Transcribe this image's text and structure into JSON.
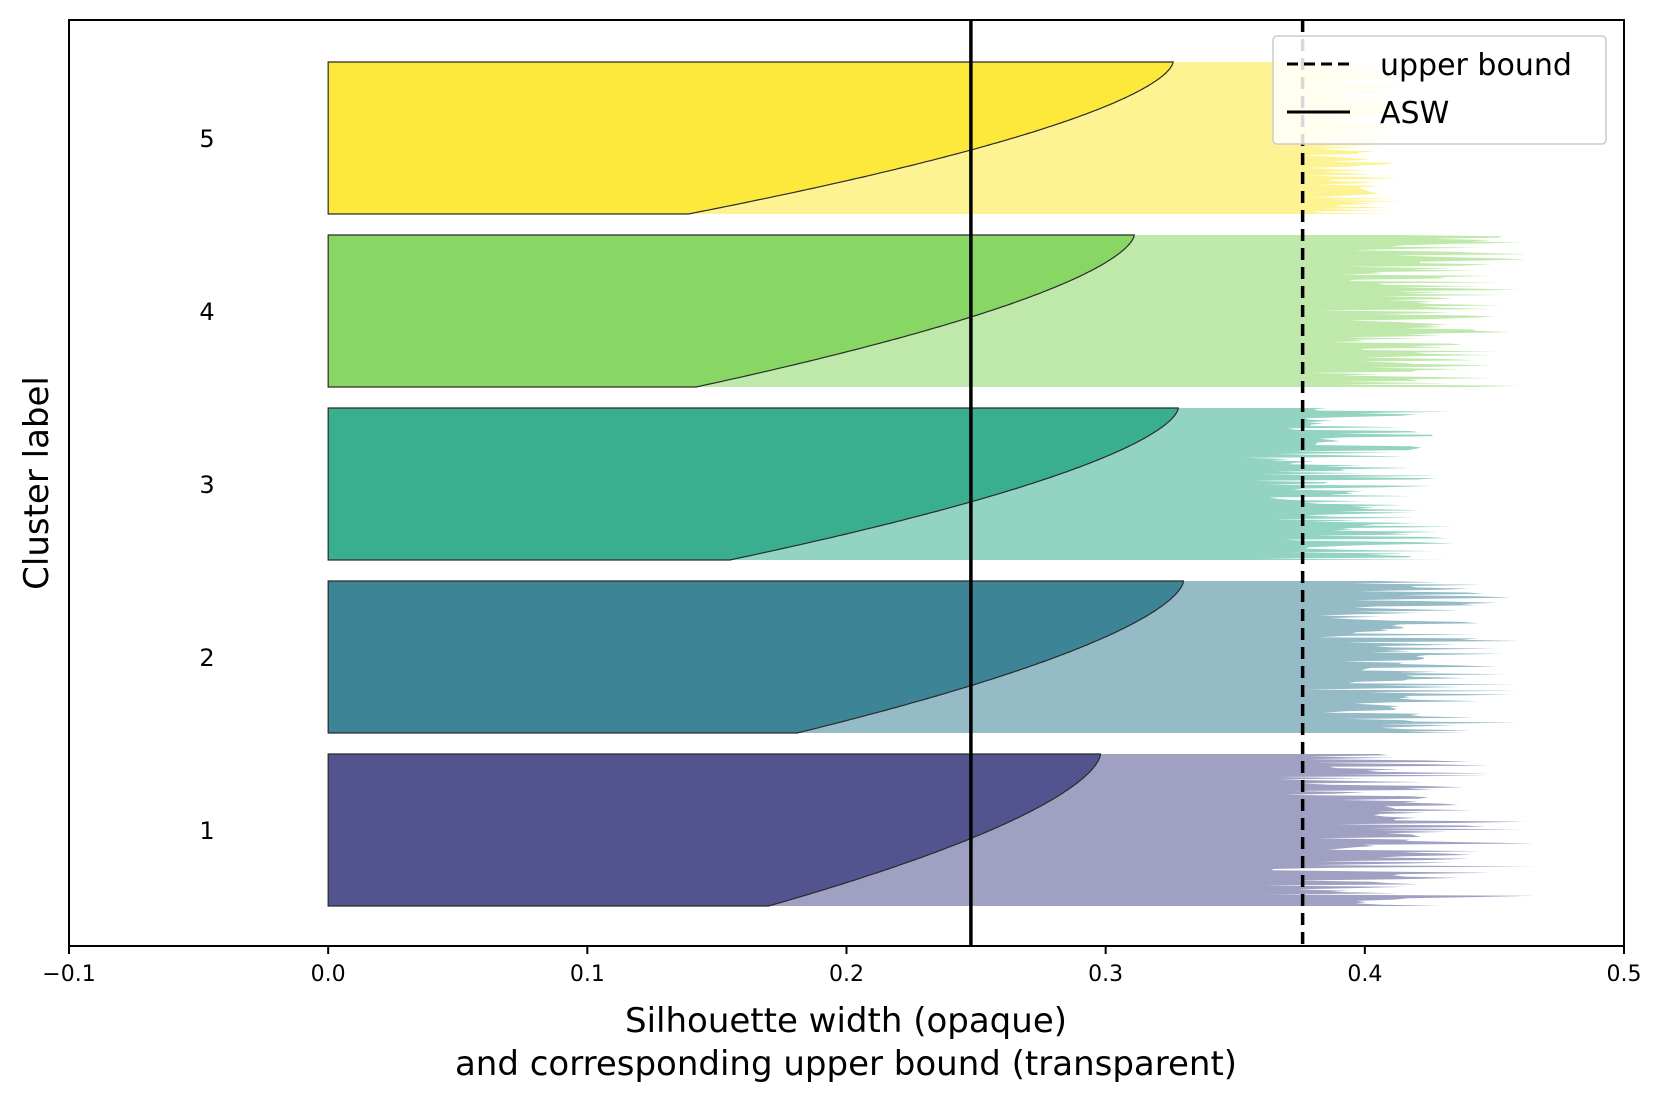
{
  "chart_data": {
    "type": "area",
    "xlabel_line1": "Silhouette width (opaque)",
    "xlabel_line2": "and corresponding upper bound (transparent)",
    "ylabel": "Cluster label",
    "xlim": [
      -0.1,
      0.5
    ],
    "x_ticks": [
      -0.1,
      0.0,
      0.1,
      0.2,
      0.3,
      0.4,
      0.5
    ],
    "x_tick_labels": [
      "−0.1",
      "0.0",
      "0.1",
      "0.2",
      "0.3",
      "0.4",
      "0.5"
    ],
    "grid": false,
    "legend_position": "top-right",
    "legend": [
      {
        "label": "upper bound",
        "style": "dashed",
        "color": "#000000"
      },
      {
        "label": "ASW",
        "style": "solid",
        "color": "#000000"
      }
    ],
    "asw": 0.248,
    "upper_bound": 0.376,
    "clusters": [
      {
        "label": "1",
        "color": "#52538f",
        "silhouette_min": 0.17,
        "silhouette_max": 0.298,
        "upper_min": 0.33,
        "upper_max": 0.467
      },
      {
        "label": "2",
        "color": "#3e8497",
        "silhouette_min": 0.181,
        "silhouette_max": 0.33,
        "upper_min": 0.35,
        "upper_max": 0.46
      },
      {
        "label": "3",
        "color": "#3aaf8f",
        "silhouette_min": 0.155,
        "silhouette_max": 0.328,
        "upper_min": 0.33,
        "upper_max": 0.438
      },
      {
        "label": "4",
        "color": "#88d765",
        "silhouette_min": 0.142,
        "silhouette_max": 0.311,
        "upper_min": 0.36,
        "upper_max": 0.463
      },
      {
        "label": "5",
        "color": "#fde93b",
        "silhouette_min": 0.139,
        "silhouette_max": 0.326,
        "upper_min": 0.37,
        "upper_max": 0.414
      }
    ]
  }
}
